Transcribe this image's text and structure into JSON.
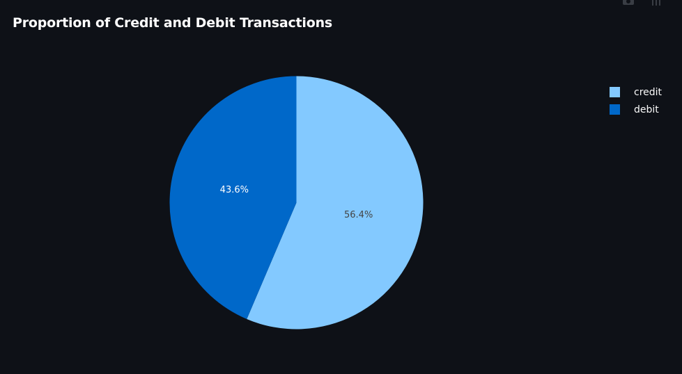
{
  "chart_data": {
    "type": "pie",
    "title": "Proportion of Credit and Debit Transactions",
    "slices": [
      {
        "label": "credit",
        "value": 56.4,
        "display": "56.4%",
        "color": "#83c9ff",
        "text_color": "#444444"
      },
      {
        "label": "debit",
        "value": 43.6,
        "display": "43.6%",
        "color": "#0068c9",
        "text_color": "#ffffff"
      }
    ],
    "direction": "clockwise",
    "start": "top",
    "legend_position": "top-right"
  },
  "theme": {
    "background": "#0e1117",
    "title_color": "#ffffff",
    "legend_text_color": "#fafafa"
  },
  "modebar": {
    "icons": [
      "camera-icon",
      "bar-chart-icon"
    ]
  }
}
